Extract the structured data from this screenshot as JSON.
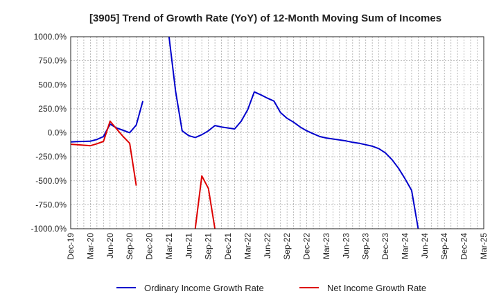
{
  "chart_data": {
    "type": "line",
    "title": "[3905]  Trend of Growth Rate (YoY) of 12-Month Moving Sum of Incomes",
    "xlabel": "",
    "ylabel": "",
    "ylim": [
      -1000,
      1000
    ],
    "y_ticks": [
      "1000.0%",
      "750.0%",
      "500.0%",
      "250.0%",
      "0.0%",
      "-250.0%",
      "-500.0%",
      "-750.0%",
      "-1000.0%"
    ],
    "y_tick_values": [
      1000,
      750,
      500,
      250,
      0,
      -250,
      -500,
      -750,
      -1000
    ],
    "x_ticks": [
      "Dec-19",
      "Mar-20",
      "Jun-20",
      "Sep-20",
      "Dec-20",
      "Mar-21",
      "Jun-21",
      "Sep-21",
      "Dec-21",
      "Mar-22",
      "Jun-22",
      "Sep-22",
      "Dec-22",
      "Mar-23",
      "Jun-23",
      "Sep-23",
      "Dec-23",
      "Mar-24",
      "Jun-24",
      "Sep-24",
      "Dec-24",
      "Mar-25"
    ],
    "grid": true,
    "legend_position": "bottom",
    "series": [
      {
        "name": "Ordinary Income Growth Rate",
        "color": "#0000cc",
        "values": [
          -95,
          -92,
          -90,
          -88,
          -70,
          -40,
          90,
          50,
          25,
          0,
          80,
          330,
          null,
          null,
          null,
          1000,
          430,
          20,
          -30,
          -50,
          -20,
          20,
          75,
          60,
          50,
          40,
          120,
          240,
          425,
          395,
          360,
          330,
          210,
          150,
          110,
          60,
          20,
          -10,
          -40,
          -55,
          -65,
          -75,
          -85,
          -100,
          -110,
          -125,
          -140,
          -165,
          -210,
          -280,
          -370,
          -480,
          -600,
          -1000
        ]
      },
      {
        "name": "Net Income Growth Rate",
        "color": "#dd0000",
        "values": [
          -120,
          -125,
          -130,
          -135,
          -115,
          -90,
          120,
          40,
          -40,
          -110,
          -550,
          null,
          null,
          null,
          null,
          null,
          null,
          null,
          null,
          -1000,
          -450,
          -580,
          -1000
        ]
      }
    ]
  }
}
